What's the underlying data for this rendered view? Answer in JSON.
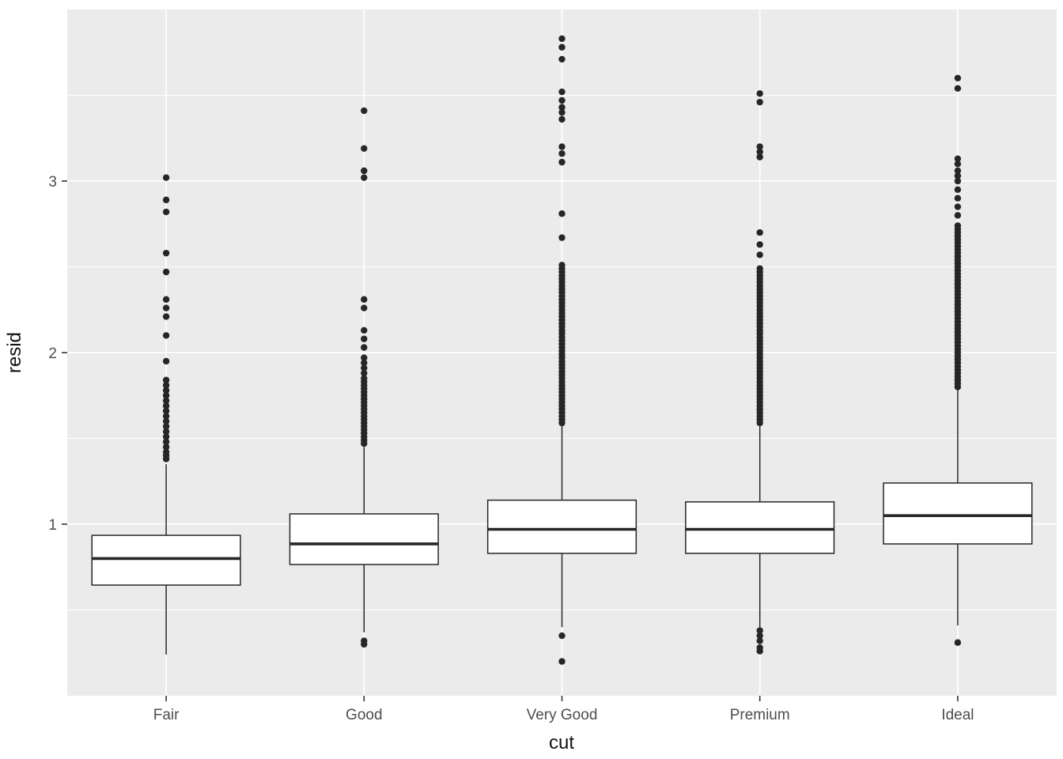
{
  "chart_data": {
    "type": "boxplot",
    "title": "",
    "xlabel": "cut",
    "ylabel": "resid",
    "categories": [
      "Fair",
      "Good",
      "Very Good",
      "Premium",
      "Ideal"
    ],
    "ylim": [
      0,
      4
    ],
    "yticks_major": [
      1,
      2,
      3
    ],
    "yticks_minor": [
      0.5,
      1.5,
      2.5,
      3.5
    ],
    "legend": "none",
    "grid": "white horizontal major+minor gridlines and vertical major gridlines at each category, on grey panel",
    "panel_bg": "#EBEBEB",
    "grid_color": "#FFFFFF",
    "box_color": "#262626",
    "box_fill": "#FFFFFF",
    "tick_mark_color": "#333333",
    "tick_label_color": "#4D4D4D",
    "axis_title_color": "#111111",
    "series": [
      {
        "category": "Fair",
        "whisker_low": 0.24,
        "q1": 0.645,
        "median": 0.8,
        "q3": 0.935,
        "whisker_high": 1.35,
        "outliers": [
          1.38,
          1.4,
          1.42,
          1.45,
          1.48,
          1.51,
          1.54,
          1.57,
          1.6,
          1.63,
          1.66,
          1.69,
          1.72,
          1.75,
          1.78,
          1.81,
          1.84,
          1.95,
          2.1,
          2.21,
          2.26,
          2.31,
          2.47,
          2.58,
          2.82,
          2.89,
          3.02
        ]
      },
      {
        "category": "Good",
        "whisker_low": 0.37,
        "q1": 0.765,
        "median": 0.885,
        "q3": 1.06,
        "whisker_high": 1.45,
        "outliers": [
          0.3,
          0.32,
          1.47,
          1.49,
          1.51,
          1.53,
          1.55,
          1.57,
          1.59,
          1.61,
          1.63,
          1.65,
          1.67,
          1.69,
          1.71,
          1.73,
          1.75,
          1.77,
          1.79,
          1.81,
          1.83,
          1.85,
          1.88,
          1.91,
          1.94,
          1.97,
          2.03,
          2.08,
          2.13,
          2.26,
          2.31,
          3.02,
          3.06,
          3.19,
          3.41
        ]
      },
      {
        "category": "Very Good",
        "whisker_low": 0.4,
        "q1": 0.83,
        "median": 0.97,
        "q3": 1.14,
        "whisker_high": 1.58,
        "outliers": [
          0.2,
          0.35,
          1.59,
          1.61,
          1.63,
          1.65,
          1.67,
          1.69,
          1.71,
          1.73,
          1.75,
          1.77,
          1.79,
          1.81,
          1.83,
          1.85,
          1.87,
          1.89,
          1.91,
          1.93,
          1.95,
          1.97,
          1.99,
          2.01,
          2.03,
          2.05,
          2.07,
          2.09,
          2.11,
          2.13,
          2.15,
          2.17,
          2.19,
          2.21,
          2.23,
          2.25,
          2.27,
          2.29,
          2.31,
          2.33,
          2.35,
          2.37,
          2.39,
          2.41,
          2.43,
          2.45,
          2.47,
          2.49,
          2.51,
          2.67,
          2.81,
          3.11,
          3.16,
          3.2,
          3.36,
          3.4,
          3.43,
          3.47,
          3.52,
          3.71,
          3.78,
          3.83
        ]
      },
      {
        "category": "Premium",
        "whisker_low": 0.4,
        "q1": 0.83,
        "median": 0.97,
        "q3": 1.13,
        "whisker_high": 1.57,
        "outliers": [
          0.26,
          0.28,
          0.32,
          0.35,
          0.38,
          1.59,
          1.61,
          1.63,
          1.65,
          1.67,
          1.69,
          1.71,
          1.73,
          1.75,
          1.77,
          1.79,
          1.81,
          1.83,
          1.85,
          1.87,
          1.89,
          1.91,
          1.93,
          1.95,
          1.97,
          1.99,
          2.01,
          2.03,
          2.05,
          2.07,
          2.09,
          2.11,
          2.13,
          2.15,
          2.17,
          2.19,
          2.21,
          2.23,
          2.25,
          2.27,
          2.29,
          2.31,
          2.33,
          2.35,
          2.37,
          2.39,
          2.41,
          2.43,
          2.45,
          2.47,
          2.49,
          2.57,
          2.63,
          2.7,
          3.14,
          3.17,
          3.2,
          3.46,
          3.51
        ]
      },
      {
        "category": "Ideal",
        "whisker_low": 0.41,
        "q1": 0.885,
        "median": 1.05,
        "q3": 1.24,
        "whisker_high": 1.79,
        "outliers": [
          0.31,
          1.8,
          1.82,
          1.84,
          1.86,
          1.88,
          1.9,
          1.92,
          1.94,
          1.96,
          1.98,
          2.0,
          2.02,
          2.04,
          2.06,
          2.08,
          2.1,
          2.12,
          2.14,
          2.16,
          2.18,
          2.2,
          2.22,
          2.24,
          2.26,
          2.28,
          2.3,
          2.32,
          2.34,
          2.36,
          2.38,
          2.4,
          2.42,
          2.44,
          2.46,
          2.48,
          2.5,
          2.52,
          2.54,
          2.56,
          2.58,
          2.6,
          2.62,
          2.64,
          2.66,
          2.68,
          2.7,
          2.72,
          2.74,
          2.8,
          2.85,
          2.9,
          2.95,
          3.0,
          3.03,
          3.06,
          3.1,
          3.13,
          3.54,
          3.6
        ]
      }
    ]
  }
}
